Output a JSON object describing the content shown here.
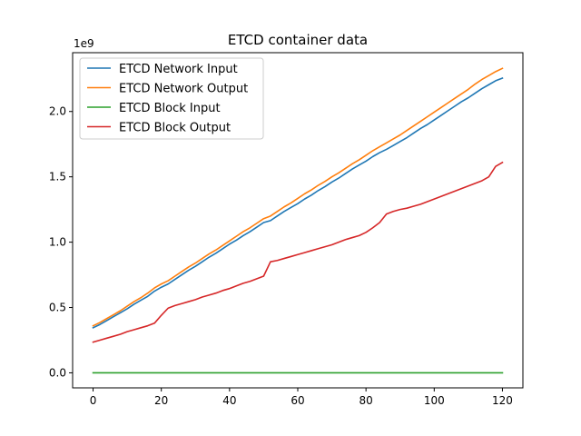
{
  "chart_data": {
    "type": "line",
    "title": "ETCD container data",
    "xlabel": "",
    "ylabel": "",
    "y_multiplier_label": "1e9",
    "xlim": [
      -6,
      126
    ],
    "ylim": [
      -0.115,
      2.45
    ],
    "x_ticks": [
      0,
      20,
      40,
      60,
      80,
      100,
      120
    ],
    "x_tick_labels": [
      "0",
      "20",
      "40",
      "60",
      "80",
      "100",
      "120"
    ],
    "y_ticks": [
      0.0,
      0.5,
      1.0,
      1.5,
      2.0
    ],
    "y_tick_labels": [
      "0.0",
      "0.5",
      "1.0",
      "1.5",
      "2.0"
    ],
    "grid": false,
    "legend_position": "upper-left",
    "x": [
      0,
      2,
      4,
      6,
      8,
      10,
      12,
      14,
      16,
      18,
      20,
      22,
      24,
      26,
      28,
      30,
      32,
      34,
      36,
      38,
      40,
      42,
      44,
      46,
      48,
      50,
      52,
      54,
      56,
      58,
      60,
      62,
      64,
      66,
      68,
      70,
      72,
      74,
      76,
      78,
      80,
      82,
      84,
      86,
      88,
      90,
      92,
      94,
      96,
      98,
      100,
      102,
      104,
      106,
      108,
      110,
      112,
      114,
      116,
      118,
      120
    ],
    "series": [
      {
        "name": "ETCD Network Input",
        "color": "#1f77b4",
        "values": [
          0.345,
          0.37,
          0.4,
          0.43,
          0.46,
          0.49,
          0.525,
          0.555,
          0.585,
          0.625,
          0.655,
          0.68,
          0.715,
          0.75,
          0.785,
          0.815,
          0.85,
          0.885,
          0.915,
          0.95,
          0.985,
          1.015,
          1.05,
          1.08,
          1.115,
          1.15,
          1.165,
          1.2,
          1.235,
          1.265,
          1.295,
          1.33,
          1.36,
          1.395,
          1.425,
          1.46,
          1.49,
          1.525,
          1.56,
          1.59,
          1.62,
          1.655,
          1.685,
          1.71,
          1.74,
          1.77,
          1.8,
          1.835,
          1.87,
          1.9,
          1.935,
          1.97,
          2.005,
          2.04,
          2.075,
          2.105,
          2.14,
          2.175,
          2.205,
          2.235,
          2.255
        ]
      },
      {
        "name": "ETCD Network Output",
        "color": "#ff7f0e",
        "values": [
          0.36,
          0.385,
          0.415,
          0.445,
          0.475,
          0.51,
          0.545,
          0.575,
          0.61,
          0.65,
          0.68,
          0.705,
          0.74,
          0.775,
          0.81,
          0.84,
          0.875,
          0.91,
          0.94,
          0.975,
          1.01,
          1.045,
          1.08,
          1.11,
          1.145,
          1.18,
          1.2,
          1.235,
          1.27,
          1.3,
          1.335,
          1.37,
          1.4,
          1.435,
          1.465,
          1.5,
          1.53,
          1.565,
          1.6,
          1.63,
          1.665,
          1.7,
          1.73,
          1.76,
          1.79,
          1.82,
          1.855,
          1.89,
          1.925,
          1.96,
          1.995,
          2.03,
          2.065,
          2.1,
          2.135,
          2.17,
          2.21,
          2.245,
          2.275,
          2.305,
          2.33
        ]
      },
      {
        "name": "ETCD Block Input",
        "color": "#2ca02c",
        "values": [
          0,
          0,
          0,
          0,
          0,
          0,
          0,
          0,
          0,
          0,
          0,
          0,
          0,
          0,
          0,
          0,
          0,
          0,
          0,
          0,
          0,
          0,
          0,
          0,
          0,
          0,
          0,
          0,
          0,
          0,
          0,
          0,
          0,
          0,
          0,
          0,
          0,
          0,
          0,
          0,
          0,
          0,
          0,
          0,
          0,
          0,
          0,
          0,
          0,
          0,
          0,
          0,
          0,
          0,
          0,
          0,
          0,
          0,
          0,
          0,
          0
        ]
      },
      {
        "name": "ETCD Block Output",
        "color": "#d62728",
        "values": [
          0.235,
          0.25,
          0.265,
          0.28,
          0.295,
          0.315,
          0.33,
          0.345,
          0.36,
          0.38,
          0.44,
          0.495,
          0.515,
          0.53,
          0.545,
          0.56,
          0.58,
          0.595,
          0.61,
          0.63,
          0.645,
          0.665,
          0.685,
          0.7,
          0.72,
          0.74,
          0.85,
          0.86,
          0.875,
          0.89,
          0.905,
          0.92,
          0.935,
          0.95,
          0.965,
          0.98,
          1.0,
          1.02,
          1.035,
          1.05,
          1.075,
          1.11,
          1.15,
          1.215,
          1.235,
          1.25,
          1.26,
          1.275,
          1.29,
          1.31,
          1.33,
          1.35,
          1.37,
          1.39,
          1.41,
          1.43,
          1.45,
          1.47,
          1.5,
          1.58,
          1.61
        ]
      }
    ]
  }
}
